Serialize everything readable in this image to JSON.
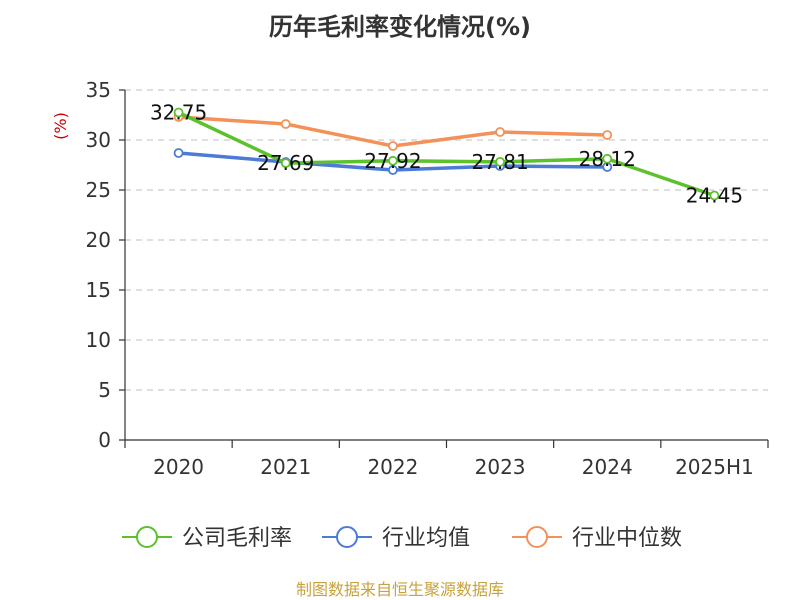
{
  "chart_data": {
    "type": "line",
    "title": "历年毛利率变化情况(%)",
    "ylabel": "(%)",
    "xlabel": "",
    "categories": [
      "2020",
      "2021",
      "2022",
      "2023",
      "2024",
      "2025H1"
    ],
    "ylim": [
      0,
      35
    ],
    "yticks": [
      0,
      5,
      10,
      15,
      20,
      25,
      30,
      35
    ],
    "grid": true,
    "legend_position": "bottom",
    "series": [
      {
        "name": "公司毛利率",
        "color": "#5cc12c",
        "values": [
          32.75,
          27.69,
          27.92,
          27.81,
          28.12,
          24.45
        ],
        "show_labels": true
      },
      {
        "name": "行业均值",
        "color": "#4b7bd6",
        "values": [
          28.7,
          27.8,
          27.0,
          27.4,
          27.3,
          null
        ],
        "show_labels": false
      },
      {
        "name": "行业中位数",
        "color": "#f49159",
        "values": [
          32.3,
          31.6,
          29.4,
          30.8,
          30.5,
          null
        ],
        "show_labels": false
      }
    ]
  },
  "footer": {
    "source": "制图数据来自恒生聚源数据库"
  },
  "colors": {
    "ylabel": "#cc0000",
    "source": "#c8a23c",
    "grid": "#cccccc",
    "axis": "#333333"
  }
}
